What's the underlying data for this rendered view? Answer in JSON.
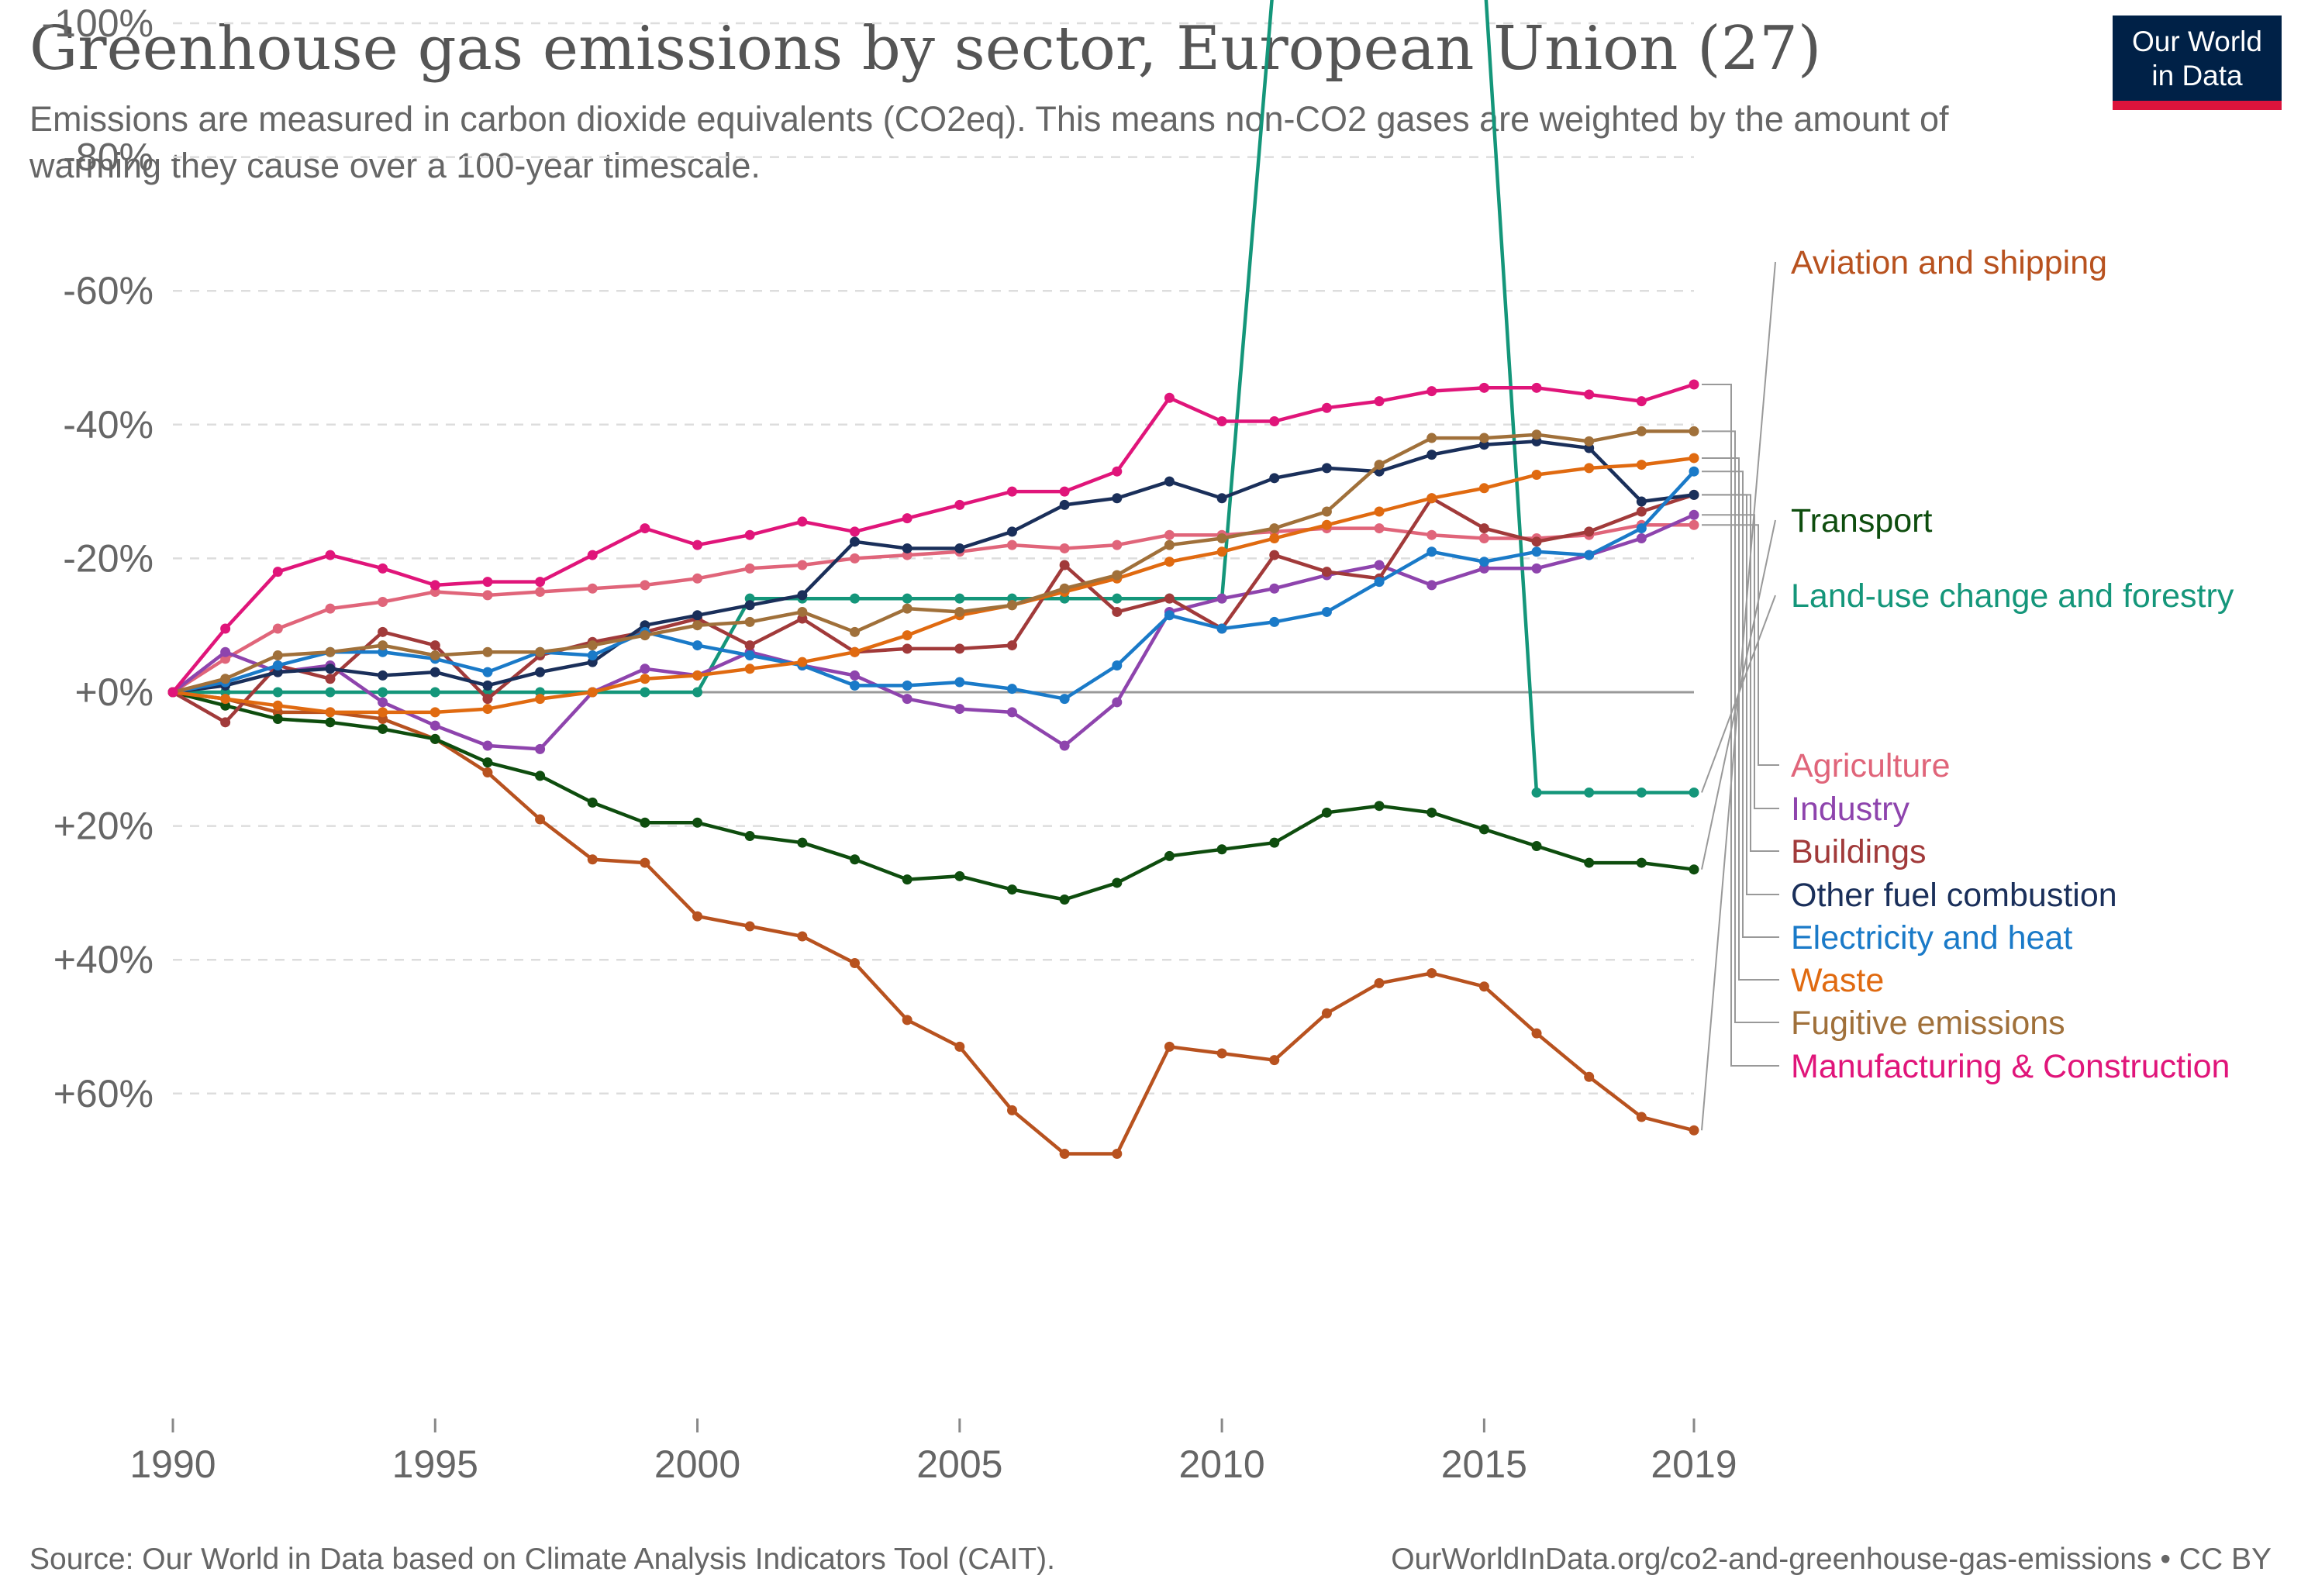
{
  "logo": {
    "line1": "Our World",
    "line2": "in Data",
    "bg": "#002147",
    "accent": "#dc143c"
  },
  "footer": {
    "source": "Source: Our World in Data based on Climate Analysis Indicators Tool (CAIT).",
    "url": "OurWorldInData.org/co2-and-greenhouse-gas-emissions • CC BY"
  },
  "chart_data": {
    "type": "line",
    "title": "Greenhouse gas emissions by sector, European Union (27)",
    "subtitle": "Emissions are measured in carbon dioxide equivalents (CO2eq). This means non-CO2 gases are weighted by the amount of warming they cause over a 100-year timescale.",
    "x_ticks": [
      1990,
      1995,
      2000,
      2005,
      2010,
      2015,
      2019
    ],
    "y_ticks": [
      60,
      40,
      20,
      0,
      -20,
      -40,
      -60,
      -80,
      -100
    ],
    "y_tick_labels": [
      "+60%",
      "+40%",
      "+20%",
      "+0%",
      "-20%",
      "-40%",
      "-60%",
      "-80%",
      "-100%"
    ],
    "xlim": [
      1990,
      2019
    ],
    "ylim": [
      -110,
      72
    ],
    "grid": "horizontal dashed",
    "legend": "right-side line labels",
    "x": [
      1990,
      1991,
      1992,
      1993,
      1994,
      1995,
      1996,
      1997,
      1998,
      1999,
      2000,
      2001,
      2002,
      2003,
      2004,
      2005,
      2006,
      2007,
      2008,
      2009,
      2010,
      2011,
      2012,
      2013,
      2014,
      2015,
      2016,
      2017,
      2018,
      2019
    ],
    "series": [
      {
        "name": "Aviation and shipping",
        "color": "#b8521f",
        "values": [
          0,
          1,
          3,
          3,
          4,
          7,
          12,
          19,
          25,
          25.5,
          33.5,
          35,
          36.5,
          40.5,
          49,
          53,
          62.5,
          69,
          69,
          53,
          54,
          55,
          48,
          43.5,
          42,
          44,
          51,
          57.5,
          63.5,
          65.5
        ]
      },
      {
        "name": "Transport",
        "color": "#0e4d0e",
        "values": [
          0,
          2,
          4,
          4.5,
          5.5,
          7,
          10.5,
          12.5,
          16.5,
          19.5,
          19.5,
          21.5,
          22.5,
          25,
          28,
          27.5,
          29.5,
          31,
          28.5,
          24.5,
          23.5,
          22.5,
          18,
          17,
          18,
          20.5,
          23,
          25.5,
          25.5,
          26.5
        ]
      },
      {
        "name": "Land-use change and forestry",
        "color": "#14967a",
        "values": [
          0,
          0,
          0,
          0,
          0,
          0,
          0,
          0,
          0,
          0,
          0,
          -14,
          -14,
          -14,
          -14,
          -14,
          -14,
          -14,
          -14,
          -14,
          -14,
          -108,
          -108,
          -108,
          -108,
          -108,
          15,
          15,
          15,
          15
        ]
      },
      {
        "name": "Agriculture",
        "color": "#e0657a",
        "values": [
          0,
          -5,
          -9.5,
          -12.5,
          -13.5,
          -15,
          -14.5,
          -15,
          -15.5,
          -16,
          -17,
          -18.5,
          -19,
          -20,
          -20.5,
          -21,
          -22,
          -21.5,
          -22,
          -23.5,
          -23.5,
          -24,
          -24.5,
          -24.5,
          -23.5,
          -23,
          -23,
          -23.5,
          -25,
          -25
        ]
      },
      {
        "name": "Industry",
        "color": "#8e44ad",
        "values": [
          0,
          -6,
          -3,
          -4,
          1.5,
          5,
          8,
          8.5,
          0,
          -3.5,
          -2.5,
          -6,
          -4,
          -2.5,
          1,
          2.5,
          3,
          8,
          1.5,
          -12,
          -14,
          -15.5,
          -17.5,
          -19,
          -16,
          -18.5,
          -18.5,
          -20.5,
          -23,
          -26.5
        ]
      },
      {
        "name": "Buildings",
        "color": "#a13a3a",
        "values": [
          0,
          4.5,
          -4,
          -2,
          -9,
          -7,
          1,
          -5.5,
          -7.5,
          -9,
          -11,
          -7,
          -11,
          -6,
          -6.5,
          -6.5,
          -7,
          -19,
          -12,
          -14,
          -9.5,
          -20.5,
          -18,
          -17,
          -29,
          -24.5,
          -22.5,
          -24,
          -27,
          -29.5
        ]
      },
      {
        "name": "Other fuel combustion",
        "color": "#1a2f5a",
        "values": [
          0,
          -1,
          -3,
          -3.5,
          -2.5,
          -3,
          -1,
          -3,
          -4.5,
          -10,
          -11.5,
          -13,
          -14.5,
          -22.5,
          -21.5,
          -21.5,
          -24,
          -28,
          -29,
          -31.5,
          -29,
          -32,
          -33.5,
          -33,
          -35.5,
          -37,
          -37.5,
          -36.5,
          -28.5,
          -29.5
        ]
      },
      {
        "name": "Electricity and heat",
        "color": "#1a7ac8",
        "values": [
          0,
          -1.5,
          -4,
          -6,
          -6,
          -5,
          -3,
          -6,
          -5.5,
          -9,
          -7,
          -5.5,
          -4,
          -1,
          -1,
          -1.5,
          -0.5,
          1,
          -4,
          -11.5,
          -9.5,
          -10.5,
          -12,
          -16.5,
          -21,
          -19.5,
          -21,
          -20.5,
          -24.5,
          -33
        ]
      },
      {
        "name": "Waste",
        "color": "#e06a10",
        "values": [
          0,
          1,
          2,
          3,
          3,
          3,
          2.5,
          1,
          0,
          -2,
          -2.5,
          -3.5,
          -4.5,
          -6,
          -8.5,
          -11.5,
          -13,
          -15,
          -17,
          -19.5,
          -21,
          -23,
          -25,
          -27,
          -29,
          -30.5,
          -32.5,
          -33.5,
          -34,
          -35
        ]
      },
      {
        "name": "Fugitive emissions",
        "color": "#a0703a",
        "values": [
          0,
          -2,
          -5.5,
          -6,
          -7,
          -5.5,
          -6,
          -6,
          -7,
          -8.5,
          -10,
          -10.5,
          -12,
          -9,
          -12.5,
          -12,
          -13,
          -15.5,
          -17.5,
          -22,
          -23,
          -24.5,
          -27,
          -34,
          -38,
          -38,
          -38.5,
          -37.5,
          -39,
          -39
        ]
      },
      {
        "name": "Manufacturing & Construction",
        "color": "#e0157a",
        "values": [
          0,
          -9.5,
          -18,
          -20.5,
          -18.5,
          -16,
          -16.5,
          -16.5,
          -20.5,
          -24.5,
          -22,
          -23.5,
          -25.5,
          -24,
          -26,
          -28,
          -30,
          -30,
          -33,
          -44,
          -40.5,
          -40.5,
          -42.5,
          -43.5,
          -45,
          -45.5,
          -45.5,
          -44.5,
          -43.5,
          -46
        ]
      }
    ]
  }
}
